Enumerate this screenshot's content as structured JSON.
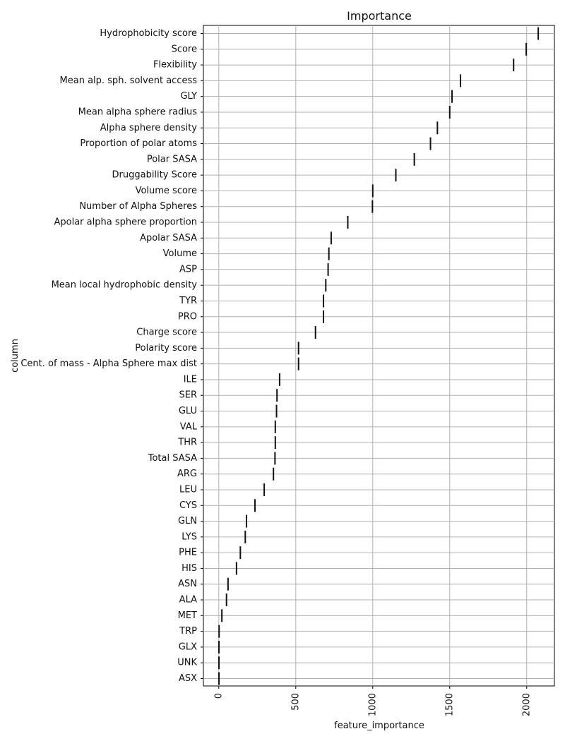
{
  "chart_data": {
    "type": "box",
    "title": "Importance",
    "xlabel": "feature_importance",
    "ylabel": "column",
    "xlim": [
      -100,
      2180
    ],
    "xticks": [
      0,
      500,
      1000,
      1500,
      2000
    ],
    "grid": true,
    "categories": [
      "Hydrophobicity score",
      "Score",
      "Flexibility",
      "Mean alp. sph. solvent access",
      "GLY",
      "Mean alpha sphere radius",
      "Alpha sphere density",
      "Proportion of polar atoms",
      "Polar SASA",
      "Druggability Score",
      "Volume score",
      "Number of Alpha Spheres",
      "Apolar alpha sphere proportion",
      "Apolar SASA",
      "Volume",
      "ASP",
      "Mean local hydrophobic density",
      "TYR",
      "PRO",
      "Charge score",
      "Polarity score",
      "Cent. of mass - Alpha Sphere max dist",
      "ILE",
      "SER",
      "GLU",
      "VAL",
      "THR",
      "Total SASA",
      "ARG",
      "LEU",
      "CYS",
      "GLN",
      "LYS",
      "PHE",
      "HIS",
      "ASN",
      "ALA",
      "MET",
      "TRP",
      "GLX",
      "UNK",
      "ASX"
    ],
    "values": [
      2075,
      1997,
      1915,
      1570,
      1515,
      1500,
      1420,
      1375,
      1270,
      1150,
      1000,
      998,
      838,
      730,
      715,
      710,
      695,
      680,
      680,
      628,
      518,
      518,
      395,
      378,
      375,
      367,
      367,
      365,
      355,
      295,
      235,
      180,
      172,
      140,
      115,
      60,
      50,
      20,
      2,
      1,
      1,
      1
    ]
  }
}
